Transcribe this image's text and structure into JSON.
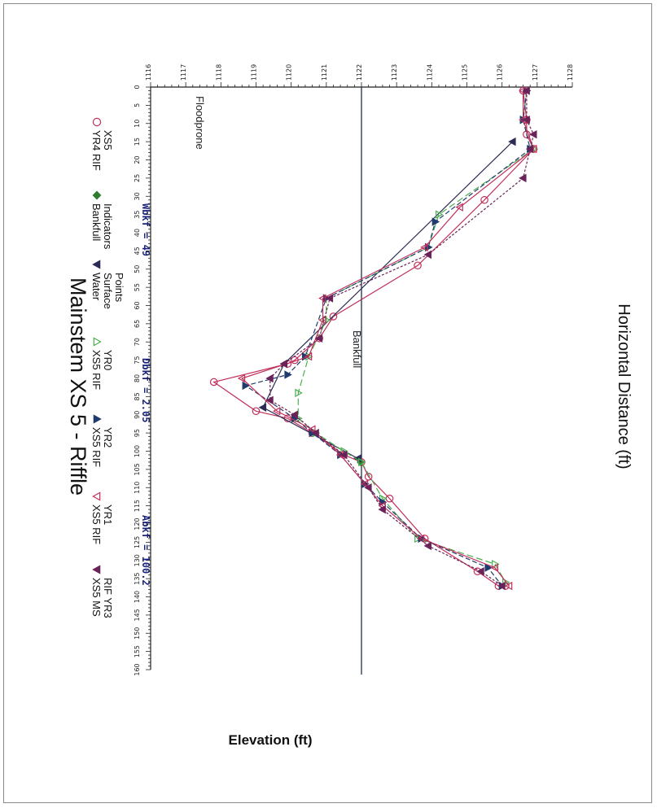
{
  "chart_data": {
    "type": "line",
    "title": "Mainstem XS 5 - Riffle",
    "xlabel": "Horizontal Distance (ft)",
    "ylabel": "Elevation (ft)",
    "xlim": [
      0,
      160
    ],
    "ylim": [
      1116,
      1128
    ],
    "x_ticks": [
      "0",
      "5",
      "10",
      "15",
      "20",
      "25",
      "30",
      "35",
      "40",
      "45",
      "50",
      "55",
      "60",
      "65",
      "70",
      "75",
      "80",
      "85",
      "90",
      "95",
      "100",
      "105",
      "110",
      "115",
      "120",
      "125",
      "130",
      "135",
      "140",
      "145",
      "150",
      "155",
      "160"
    ],
    "y_ticks": [
      "1116",
      "1117",
      "1118",
      "1119",
      "1120",
      "1121",
      "1122",
      "1123",
      "1124",
      "1125",
      "1126",
      "1127",
      "1128"
    ],
    "grid": false,
    "legend": "top",
    "orientation": "rotated",
    "series": [
      {
        "name": "YR4 RIF XS5",
        "marker": "circle-open",
        "color": "#c0305a",
        "points": [
          [
            1,
            1126.6
          ],
          [
            9,
            1126.7
          ],
          [
            13,
            1126.7
          ],
          [
            17,
            1126.9
          ],
          [
            31,
            1125.5
          ],
          [
            49,
            1123.6
          ],
          [
            63,
            1121.2
          ],
          [
            69,
            1120.8
          ],
          [
            75,
            1120.1
          ],
          [
            76,
            1119.9
          ],
          [
            81,
            1117.8
          ],
          [
            89,
            1119.0
          ],
          [
            91,
            1119.9
          ],
          [
            95,
            1120.6
          ],
          [
            101,
            1121.5
          ],
          [
            103,
            1122.0
          ],
          [
            107,
            1122.2
          ],
          [
            113,
            1122.8
          ],
          [
            124,
            1123.8
          ],
          [
            133,
            1125.3
          ],
          [
            137,
            1125.9
          ],
          [
            137,
            1126.1
          ]
        ]
      },
      {
        "name": "Bankfull Indicators",
        "marker": "diamond",
        "color": "#2e7d32",
        "points": [
          [
            103,
            1121.98
          ]
        ]
      },
      {
        "name": "Water Surface Points",
        "marker": "triangle-down",
        "color": "#2b2b55",
        "points": [
          [
            15,
            1126.3
          ],
          [
            76,
            1119.8
          ],
          [
            88,
            1119.2
          ],
          [
            102,
            1121.9
          ]
        ]
      },
      {
        "name": "XS5 RIF YR0",
        "marker": "triangle-open",
        "color": "#4caf50",
        "points": [
          [
            1,
            1126.7
          ],
          [
            9,
            1126.6
          ],
          [
            17,
            1126.9
          ],
          [
            35,
            1124.2
          ],
          [
            44,
            1123.9
          ],
          [
            58,
            1121.0
          ],
          [
            64,
            1121.0
          ],
          [
            74,
            1120.5
          ],
          [
            84,
            1120.2
          ],
          [
            91,
            1120.2
          ],
          [
            95,
            1120.7
          ],
          [
            100,
            1121.5
          ],
          [
            103,
            1122.0
          ],
          [
            113,
            1122.6
          ],
          [
            124,
            1123.6
          ],
          [
            131,
            1125.8
          ],
          [
            136,
            1126.1
          ]
        ]
      },
      {
        "name": "XS5 RIF YR2",
        "marker": "triangle",
        "color": "#1f3b6e",
        "points": [
          [
            1,
            1126.7
          ],
          [
            9,
            1126.6
          ],
          [
            17,
            1126.8
          ],
          [
            37,
            1124.1
          ],
          [
            44,
            1123.9
          ],
          [
            58,
            1121.0
          ],
          [
            74,
            1120.4
          ],
          [
            79,
            1119.9
          ],
          [
            82,
            1118.7
          ],
          [
            91,
            1120.1
          ],
          [
            95,
            1120.6
          ],
          [
            101,
            1121.4
          ],
          [
            109,
            1122.1
          ],
          [
            114,
            1122.6
          ],
          [
            124,
            1123.7
          ],
          [
            132,
            1125.6
          ],
          [
            137,
            1126.0
          ]
        ]
      },
      {
        "name": "XS5 RIF YR1",
        "marker": "triangle-down-open",
        "color": "#c0305a",
        "points": [
          [
            1,
            1126.6
          ],
          [
            9,
            1126.6
          ],
          [
            17,
            1126.9
          ],
          [
            33,
            1124.8
          ],
          [
            44,
            1123.8
          ],
          [
            58,
            1120.9
          ],
          [
            64,
            1120.9
          ],
          [
            74,
            1120.5
          ],
          [
            80,
            1118.6
          ],
          [
            89,
            1119.6
          ],
          [
            94,
            1120.6
          ],
          [
            101,
            1121.4
          ],
          [
            109,
            1122.1
          ],
          [
            115,
            1122.6
          ],
          [
            124,
            1123.7
          ],
          [
            132,
            1125.8
          ],
          [
            137,
            1126.2
          ]
        ]
      },
      {
        "name": "XS5 MS RIF YR3",
        "marker": "triangle-down",
        "color": "#6a2358",
        "points": [
          [
            1,
            1126.7
          ],
          [
            9,
            1126.7
          ],
          [
            13,
            1126.9
          ],
          [
            17,
            1126.8
          ],
          [
            25,
            1126.6
          ],
          [
            46,
            1123.9
          ],
          [
            58,
            1121.1
          ],
          [
            69,
            1120.8
          ],
          [
            76,
            1119.8
          ],
          [
            80,
            1119.4
          ],
          [
            86,
            1119.4
          ],
          [
            90,
            1120.1
          ],
          [
            95,
            1120.7
          ],
          [
            101,
            1121.5
          ],
          [
            110,
            1122.2
          ],
          [
            116,
            1122.6
          ],
          [
            126,
            1123.9
          ],
          [
            133,
            1125.4
          ],
          [
            137,
            1126.0
          ]
        ]
      }
    ],
    "reference_lines": [
      {
        "label": "Bankfull",
        "y": 1122.0
      },
      {
        "label": "Floodprone",
        "y": 1126.1
      }
    ],
    "annotations": [
      {
        "text": "Wbkf = 49"
      },
      {
        "text": "Dbkf = 2.05"
      },
      {
        "text": "Abkf = 100.2"
      }
    ]
  }
}
